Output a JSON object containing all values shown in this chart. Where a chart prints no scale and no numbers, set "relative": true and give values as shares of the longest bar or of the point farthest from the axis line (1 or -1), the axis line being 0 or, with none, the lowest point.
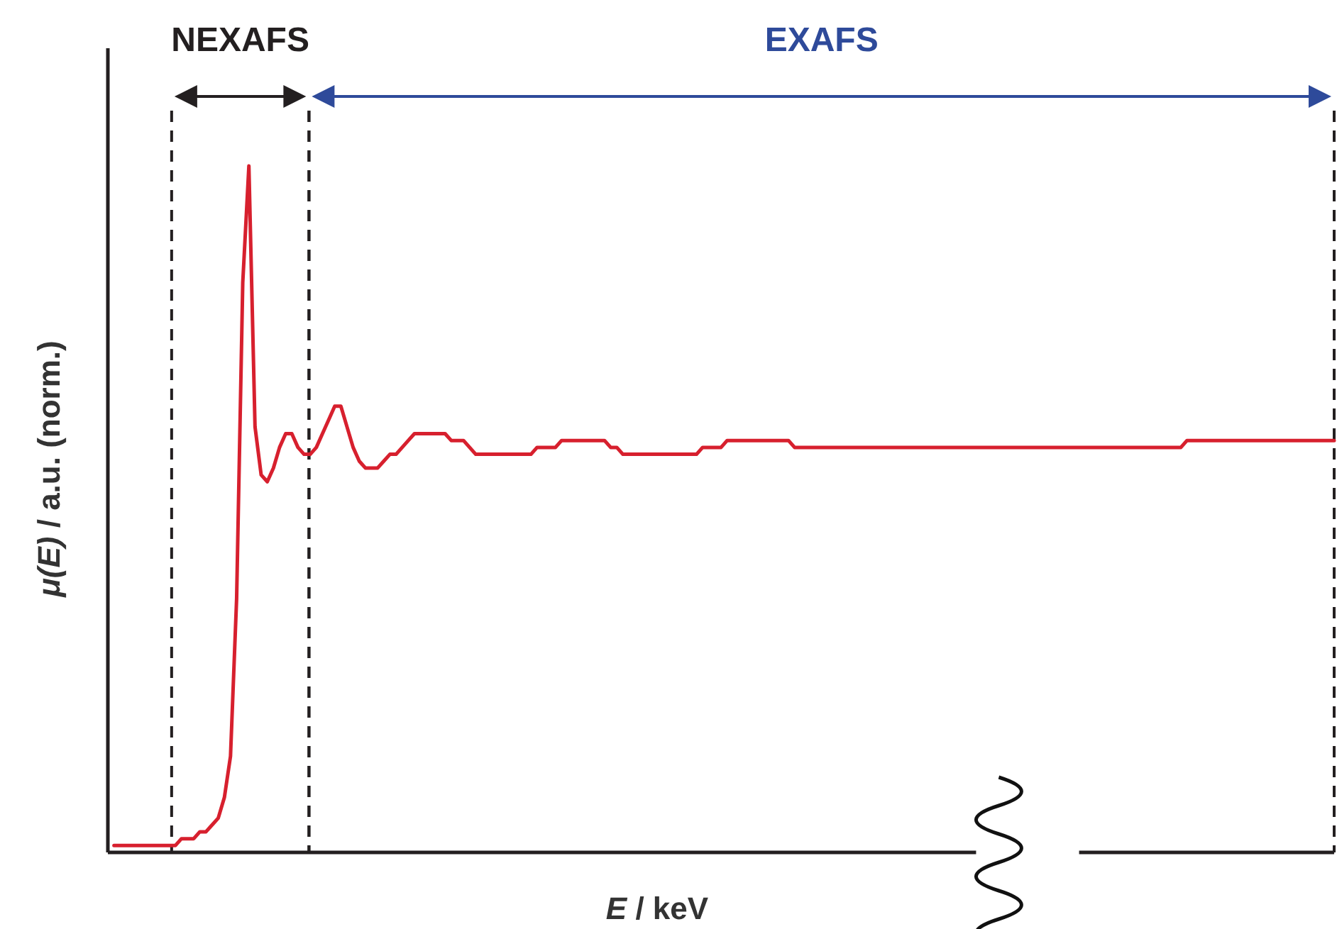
{
  "chart_data": {
    "type": "line",
    "relative": true,
    "xlabel": "E / keV",
    "ylabel": "μ(E) / a.u. (norm.)",
    "line_style": "solid",
    "categories": [
      null,
      null,
      null,
      null,
      null,
      null,
      null,
      null,
      null,
      null,
      null,
      null,
      null,
      null,
      null,
      null,
      null,
      null,
      null,
      null,
      null,
      null,
      null,
      null,
      null,
      null,
      null,
      null,
      null,
      null,
      null,
      null,
      null,
      null,
      null,
      null,
      null,
      null,
      null,
      null,
      null,
      null,
      null,
      null,
      null,
      null,
      null,
      null,
      null,
      null,
      null,
      null,
      null,
      null,
      null,
      null,
      null,
      null,
      null,
      null,
      null,
      null,
      null,
      null,
      null,
      null,
      null,
      null,
      null,
      null,
      null,
      null,
      null,
      null,
      null,
      null,
      null,
      null,
      null,
      null,
      null,
      null,
      null,
      null,
      null,
      null,
      null,
      null,
      null,
      null,
      null,
      null,
      null,
      null,
      null,
      null,
      null,
      null,
      null,
      null,
      null,
      null,
      null,
      null,
      null,
      null,
      null,
      null,
      null,
      null,
      null,
      null,
      null,
      null,
      null,
      null,
      null,
      null,
      null,
      null,
      null,
      null,
      null,
      null,
      null,
      null,
      null,
      null,
      null,
      null,
      null,
      null,
      null,
      null,
      null,
      null,
      null,
      null,
      null,
      null,
      null,
      null,
      null,
      null,
      null,
      null,
      null,
      null,
      null,
      null,
      null,
      null,
      null,
      null,
      null,
      null,
      null,
      null,
      null,
      null,
      null,
      null,
      null,
      null,
      null,
      null,
      null,
      null,
      null,
      null,
      null,
      null,
      null,
      null,
      null,
      null,
      null,
      null,
      null,
      null,
      null,
      null,
      null,
      null,
      null,
      null,
      null,
      null,
      null,
      null,
      null,
      null,
      null,
      null,
      null,
      null,
      null,
      null,
      null,
      null
    ],
    "series": [
      {
        "color": "#d7202e",
        "values": [
          0.01,
          0.01,
          0.01,
          0.01,
          0.01,
          0.01,
          0.01,
          0.01,
          0.01,
          0.01,
          0.01,
          0.02,
          0.02,
          0.02,
          0.03,
          0.03,
          0.04,
          0.05,
          0.08,
          0.14,
          0.37,
          0.83,
          1,
          0.62,
          0.55,
          0.54,
          0.56,
          0.59,
          0.61,
          0.61,
          0.59,
          0.58,
          0.58,
          0.59,
          0.61,
          0.63,
          0.65,
          0.65,
          0.62,
          0.59,
          0.57,
          0.56,
          0.56,
          0.56,
          0.57,
          0.58,
          0.58,
          0.59,
          0.6,
          0.61,
          0.61,
          0.61,
          0.61,
          0.61,
          0.61,
          0.6,
          0.6,
          0.6,
          0.59,
          0.58,
          0.58,
          0.58,
          0.58,
          0.58,
          0.58,
          0.58,
          0.58,
          0.58,
          0.58,
          0.59,
          0.59,
          0.59,
          0.59,
          0.6,
          0.6,
          0.6,
          0.6,
          0.6,
          0.6,
          0.6,
          0.6,
          0.59,
          0.59,
          0.58,
          0.58,
          0.58,
          0.58,
          0.58,
          0.58,
          0.58,
          0.58,
          0.58,
          0.58,
          0.58,
          0.58,
          0.58,
          0.59,
          0.59,
          0.59,
          0.59,
          0.6,
          0.6,
          0.6,
          0.6,
          0.6,
          0.6,
          0.6,
          0.6,
          0.6,
          0.6,
          0.6,
          0.59,
          0.59,
          0.59,
          0.59,
          0.59,
          0.59,
          0.59,
          0.59,
          0.59,
          0.59,
          0.59,
          0.59,
          0.59,
          0.59,
          0.59,
          0.59,
          0.59,
          0.59,
          0.59,
          0.59,
          0.59,
          0.59,
          0.59,
          0.59,
          0.59,
          0.59,
          0.59,
          0.59,
          0.59,
          0.59,
          0.59,
          0.59,
          0.59,
          0.59,
          0.59,
          0.59,
          0.59,
          0.59,
          0.59,
          0.59,
          0.59,
          0.59,
          0.59,
          0.59,
          0.59,
          0.59,
          0.59,
          0.59,
          0.59,
          0.59,
          0.59,
          0.59,
          0.59,
          0.59,
          0.59,
          0.59,
          0.59,
          0.59,
          0.59,
          0.59,
          0.59,
          0.59,
          0.59,
          0.59,
          0.6,
          0.6,
          0.6,
          0.6,
          0.6,
          0.6,
          0.6,
          0.6,
          0.6,
          0.6,
          0.6,
          0.6,
          0.6,
          0.6,
          0.6,
          0.6,
          0.6,
          0.6,
          0.6,
          0.6,
          0.6,
          0.6,
          0.6,
          0.6,
          0.6
        ]
      }
    ],
    "annotations": [
      "NEXAFS",
      "EXAFS"
    ]
  }
}
